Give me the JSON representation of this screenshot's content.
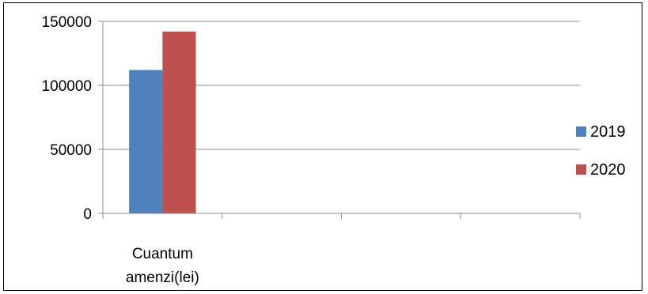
{
  "chart_data": {
    "type": "bar",
    "categories": [
      "Cuantum\namenzi(lei)",
      "",
      "",
      ""
    ],
    "category_lines": [
      [
        "Cuantum",
        "amenzi(lei)"
      ],
      [],
      [],
      []
    ],
    "series": [
      {
        "name": "2019",
        "values": [
          112000,
          null,
          null,
          null
        ],
        "color": "#4f81bd"
      },
      {
        "name": "2020",
        "values": [
          142000,
          null,
          null,
          null
        ],
        "color": "#c0504d"
      }
    ],
    "yticks": [
      0,
      50000,
      100000,
      150000
    ],
    "ytick_labels": [
      "0",
      "50000",
      "100000",
      "150000"
    ],
    "ylim": [
      0,
      150000
    ],
    "title": "",
    "xlabel": "",
    "ylabel": "",
    "grid": true,
    "legend_position": "right",
    "colors": {
      "grid": "#8c8c8c",
      "axis": "#8c8c8c"
    }
  }
}
